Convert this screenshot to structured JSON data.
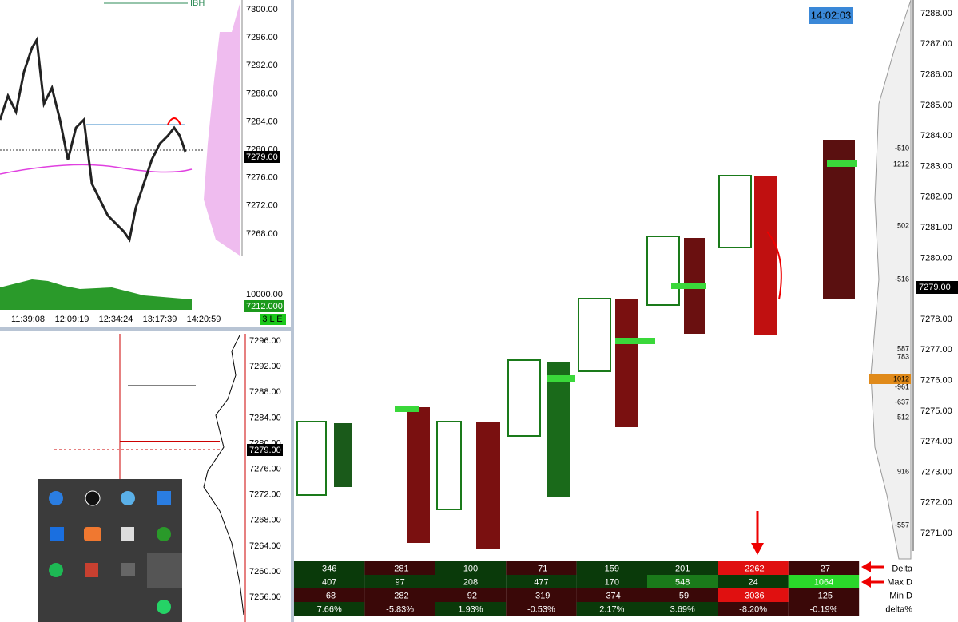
{
  "top_chart": {
    "label": "IBH",
    "price_axis": [
      "7300.00",
      "7296.00",
      "7292.00",
      "7288.00",
      "7284.00",
      "7280.00",
      "7276.00",
      "7272.00",
      "7268.00"
    ],
    "current_price": "7279.00",
    "volume_label": "10000.00",
    "volume_value": "7212.000",
    "status": "3 L E",
    "times": [
      "11:39:08",
      "12:09:19",
      "12:34:24",
      "13:17:39",
      "14:20:59"
    ]
  },
  "bottom_chart": {
    "price_axis": [
      "7296.00",
      "7292.00",
      "7288.00",
      "7284.00",
      "7280.00",
      "7276.00",
      "7272.00",
      "7268.00",
      "7264.00",
      "7260.00",
      "7256.00"
    ],
    "current_price": "7279.00"
  },
  "footprint": {
    "clock": "14:02:03",
    "price_axis": [
      "7288.00",
      "7287.00",
      "7286.00",
      "7285.00",
      "7284.00",
      "7283.00",
      "7282.00",
      "7281.00",
      "7280.00",
      "7278.00",
      "7277.00",
      "7276.00",
      "7275.00",
      "7274.00",
      "7273.00",
      "7272.00",
      "7271.00"
    ],
    "current_price": "7279.00",
    "profile_labels": [
      "-510",
      "1212",
      "502",
      "-516",
      "587",
      "783",
      "1012",
      "-961",
      "-637",
      "512",
      "916",
      "-557"
    ],
    "summary": {
      "row_labels": [
        "Delta",
        "Max D",
        "Min D",
        "delta%"
      ],
      "rows": [
        [
          346,
          -281,
          100,
          -71,
          159,
          201,
          -2262,
          -27
        ],
        [
          407,
          97,
          208,
          477,
          170,
          548,
          24,
          1064
        ],
        [
          -68,
          -282,
          -92,
          -319,
          -374,
          -59,
          -3036,
          -125
        ],
        [
          "7.66%",
          "-5.83%",
          "1.93%",
          "-0.53%",
          "2.17%",
          "3.69%",
          "-8.20%",
          "-0.19%"
        ]
      ]
    }
  }
}
